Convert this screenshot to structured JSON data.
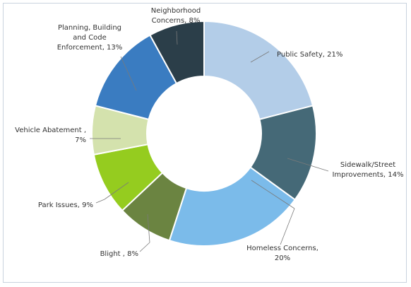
{
  "chart_data": {
    "type": "pie",
    "donut": true,
    "title": "",
    "legend": "none",
    "slices": [
      {
        "label_lines": [
          "Public Safety, 21%"
        ],
        "value": 21,
        "color": "#b3cde8"
      },
      {
        "label_lines": [
          "Sidewalk/Street",
          "Improvements, 14%"
        ],
        "value": 14,
        "color": "#456977"
      },
      {
        "label_lines": [
          "Homeless Concerns,",
          "20%"
        ],
        "value": 20,
        "color": "#7bbbea"
      },
      {
        "label_lines": [
          "Blight , 8%"
        ],
        "value": 8,
        "color": "#6b8441"
      },
      {
        "label_lines": [
          "Park Issues, 9%"
        ],
        "value": 9,
        "color": "#95cc1f"
      },
      {
        "label_lines": [
          "Vehicle Abatement ,",
          "7%"
        ],
        "value": 7,
        "color": "#d4e2ad"
      },
      {
        "label_lines": [
          "Planning, Building",
          "and Code",
          "Enforcement, 13%"
        ],
        "value": 13,
        "color": "#3a7cc1"
      },
      {
        "label_lines": [
          "Neighborhood",
          "Concerns, 8%"
        ],
        "value": 8,
        "color": "#2b3e49"
      }
    ]
  }
}
